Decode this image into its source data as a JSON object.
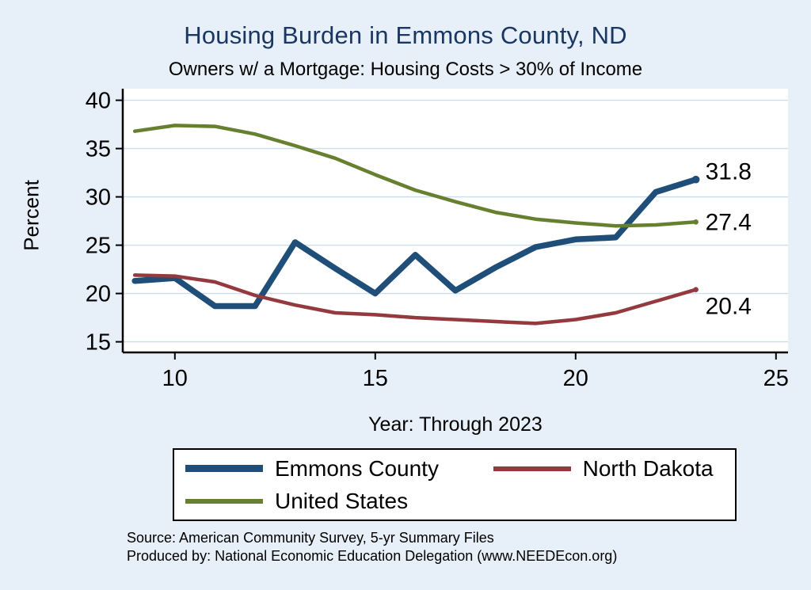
{
  "title": "Housing Burden in Emmons County, ND",
  "subtitle": "Owners w/ a Mortgage: Housing Costs > 30% of Income",
  "ylabel": "Percent",
  "xlabel": "Year: Through 2023",
  "source_line1": "Source: American Community Survey, 5-yr Summary Files",
  "source_line2": "Produced by: National Economic Education Delegation (www.NEEDEcon.org)",
  "colors": {
    "page_background": "#e7f0f8",
    "plot_background": "#ffffff",
    "gridline": "#cbdeee",
    "title_text": "#1a3763",
    "axis": "#000000",
    "emmons_county": "#1f4e79",
    "north_dakota": "#943a3e",
    "united_states": "#66802f"
  },
  "chart_data": {
    "type": "line",
    "title": "Housing Burden in Emmons County, ND",
    "subtitle": "Owners w/ a Mortgage: Housing Costs > 30% of Income",
    "xlabel": "Year: Through 2023",
    "ylabel": "Percent",
    "x": [
      9,
      10,
      11,
      12,
      13,
      14,
      15,
      16,
      17,
      18,
      19,
      20,
      21,
      22,
      23
    ],
    "xticks": [
      10,
      15,
      20,
      25
    ],
    "yticks": [
      15,
      20,
      25,
      30,
      35,
      40
    ],
    "xlim": [
      8.7,
      25.3
    ],
    "ylim": [
      13.9,
      41.2
    ],
    "grid": true,
    "legend_position": "bottom",
    "series": [
      {
        "name": "Emmons County",
        "color": "#1f4e79",
        "width": 7.5,
        "values": [
          21.3,
          21.6,
          18.7,
          18.7,
          25.3,
          22.6,
          20.0,
          24.0,
          20.3,
          22.7,
          24.8,
          25.6,
          25.8,
          30.5,
          31.8
        ],
        "end_label": "31.8",
        "label_offset_y": -10
      },
      {
        "name": "North Dakota",
        "color": "#943a3e",
        "width": 4.5,
        "values": [
          21.9,
          21.8,
          21.2,
          19.8,
          18.8,
          18.0,
          17.8,
          17.5,
          17.3,
          17.1,
          16.9,
          17.3,
          18.0,
          19.2,
          20.4
        ],
        "end_label": "20.4",
        "label_offset_y": 21
      },
      {
        "name": "United States",
        "color": "#66802f",
        "width": 4.5,
        "values": [
          36.8,
          37.4,
          37.3,
          36.5,
          35.3,
          34.0,
          32.3,
          30.7,
          29.5,
          28.4,
          27.7,
          27.3,
          27.0,
          27.1,
          27.4
        ],
        "end_label": "27.4",
        "label_offset_y": 0
      }
    ]
  }
}
